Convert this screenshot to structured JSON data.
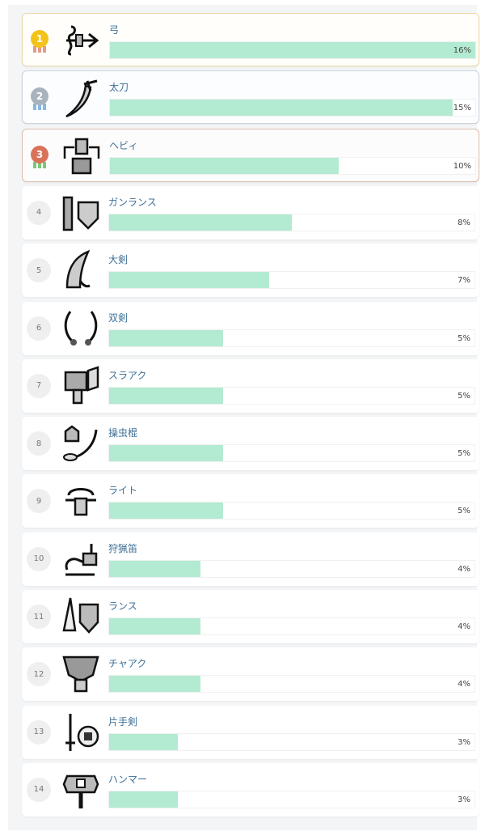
{
  "colors": {
    "bar_fill": "#b2ebd1",
    "name_text": "#3e6f96",
    "gold": "#f2c318",
    "silver": "#a9b3bd",
    "bronze": "#d8735a"
  },
  "ranking": [
    {
      "rank": "1",
      "name": "弓",
      "percent": 16,
      "label": "16%",
      "icon": "bow-icon"
    },
    {
      "rank": "2",
      "name": "太刀",
      "percent": 15,
      "label": "15%",
      "icon": "long-sword-icon"
    },
    {
      "rank": "3",
      "name": "ヘビィ",
      "percent": 10,
      "label": "10%",
      "icon": "heavy-bowgun-icon"
    },
    {
      "rank": "4",
      "name": "ガンランス",
      "percent": 8,
      "label": "8%",
      "icon": "gunlance-icon"
    },
    {
      "rank": "5",
      "name": "大剣",
      "percent": 7,
      "label": "7%",
      "icon": "great-sword-icon"
    },
    {
      "rank": "6",
      "name": "双剣",
      "percent": 5,
      "label": "5%",
      "icon": "dual-blades-icon"
    },
    {
      "rank": "7",
      "name": "スラアク",
      "percent": 5,
      "label": "5%",
      "icon": "switch-axe-icon"
    },
    {
      "rank": "8",
      "name": "操虫棍",
      "percent": 5,
      "label": "5%",
      "icon": "insect-glaive-icon"
    },
    {
      "rank": "9",
      "name": "ライト",
      "percent": 5,
      "label": "5%",
      "icon": "light-bowgun-icon"
    },
    {
      "rank": "10",
      "name": "狩猟笛",
      "percent": 4,
      "label": "4%",
      "icon": "hunting-horn-icon"
    },
    {
      "rank": "11",
      "name": "ランス",
      "percent": 4,
      "label": "4%",
      "icon": "lance-icon"
    },
    {
      "rank": "12",
      "name": "チャアク",
      "percent": 4,
      "label": "4%",
      "icon": "charge-blade-icon"
    },
    {
      "rank": "13",
      "name": "片手剣",
      "percent": 3,
      "label": "3%",
      "icon": "sword-and-shield-icon"
    },
    {
      "rank": "14",
      "name": "ハンマー",
      "percent": 3,
      "label": "3%",
      "icon": "hammer-icon"
    }
  ]
}
